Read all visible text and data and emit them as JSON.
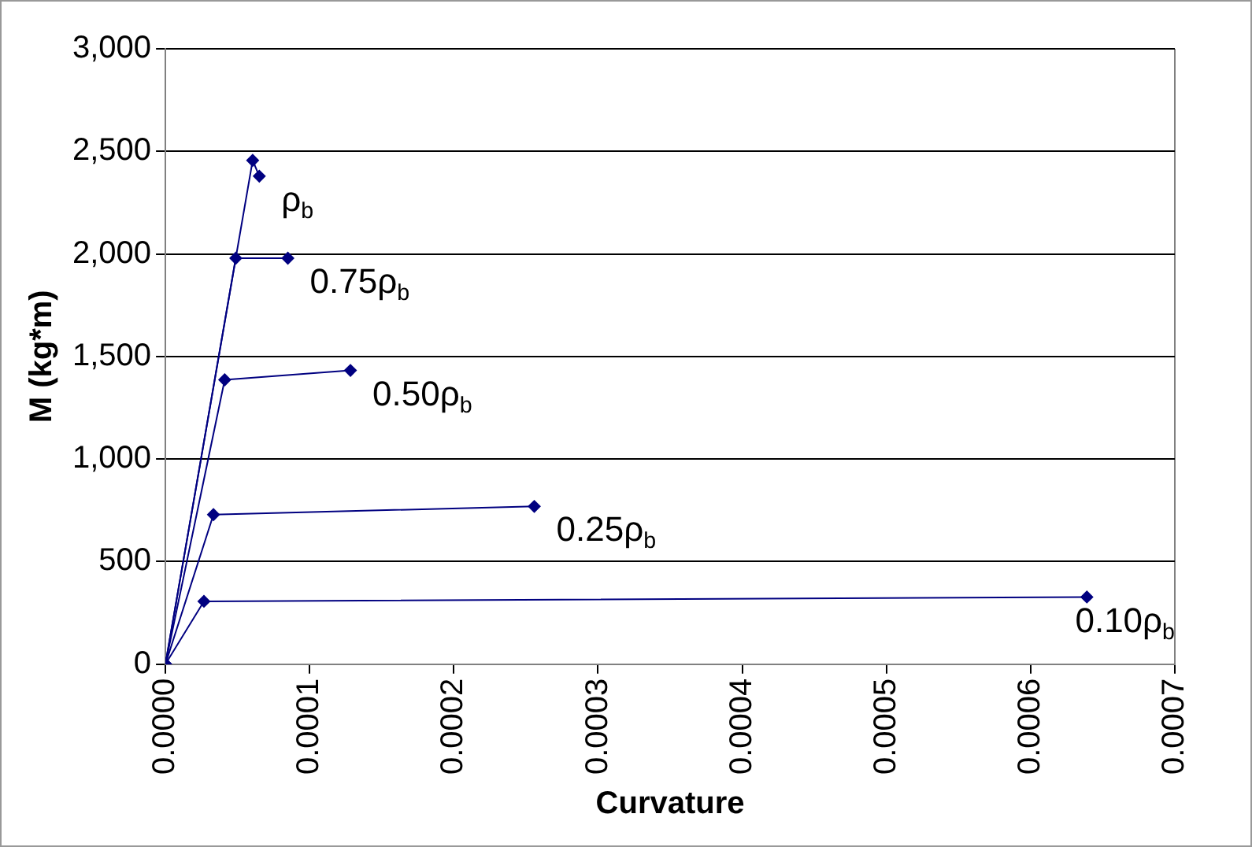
{
  "chart_data": {
    "type": "line",
    "xlabel": "Curvature",
    "ylabel": "M (kg*m)",
    "xlim": [
      0,
      0.0007
    ],
    "ylim": [
      0,
      3000
    ],
    "xticks": [
      {
        "value": 0,
        "label": "0.0000"
      },
      {
        "value": 0.0001,
        "label": "0.0001"
      },
      {
        "value": 0.0002,
        "label": "0.0002"
      },
      {
        "value": 0.0003,
        "label": "0.0003"
      },
      {
        "value": 0.0004,
        "label": "0.0004"
      },
      {
        "value": 0.0005,
        "label": "0.0005"
      },
      {
        "value": 0.0006,
        "label": "0.0006"
      },
      {
        "value": 0.0007,
        "label": "0.0007"
      }
    ],
    "yticks": [
      0,
      500,
      {
        "value": 1000,
        "label": "1,000"
      },
      {
        "value": 1500,
        "label": "1,500"
      },
      {
        "value": 2000,
        "label": "2,000"
      },
      {
        "value": 2500,
        "label": "2,500"
      },
      {
        "value": 3000,
        "label": "3,000"
      }
    ],
    "grid": "y",
    "legend": false,
    "marker": "diamond",
    "line_style": "solid",
    "series": [
      {
        "name": "ρ$_{b}$",
        "color": "#000080",
        "x": [
          0,
          6.05e-05,
          6.51e-05
        ],
        "values": [
          0,
          2456,
          2379
        ]
      },
      {
        "name": "0.75ρ$_{b}$",
        "color": "#000080",
        "x": [
          0,
          4.88e-05,
          8.49e-05
        ],
        "values": [
          0,
          1979,
          1979
        ]
      },
      {
        "name": "0.50ρ$_{b}$",
        "color": "#000080",
        "x": [
          0,
          4.11e-05,
          0.0001283
        ],
        "values": [
          0,
          1386,
          1432
        ]
      },
      {
        "name": "0.25ρ$_{b}$",
        "color": "#000080",
        "x": [
          0,
          3.33e-05,
          0.0002558
        ],
        "values": [
          0,
          729,
          769
        ]
      },
      {
        "name": "0.10ρ$_{b}$",
        "color": "#000080",
        "x": [
          0,
          2.67e-05,
          0.000639
        ],
        "values": [
          0,
          306,
          327
        ]
      }
    ]
  }
}
